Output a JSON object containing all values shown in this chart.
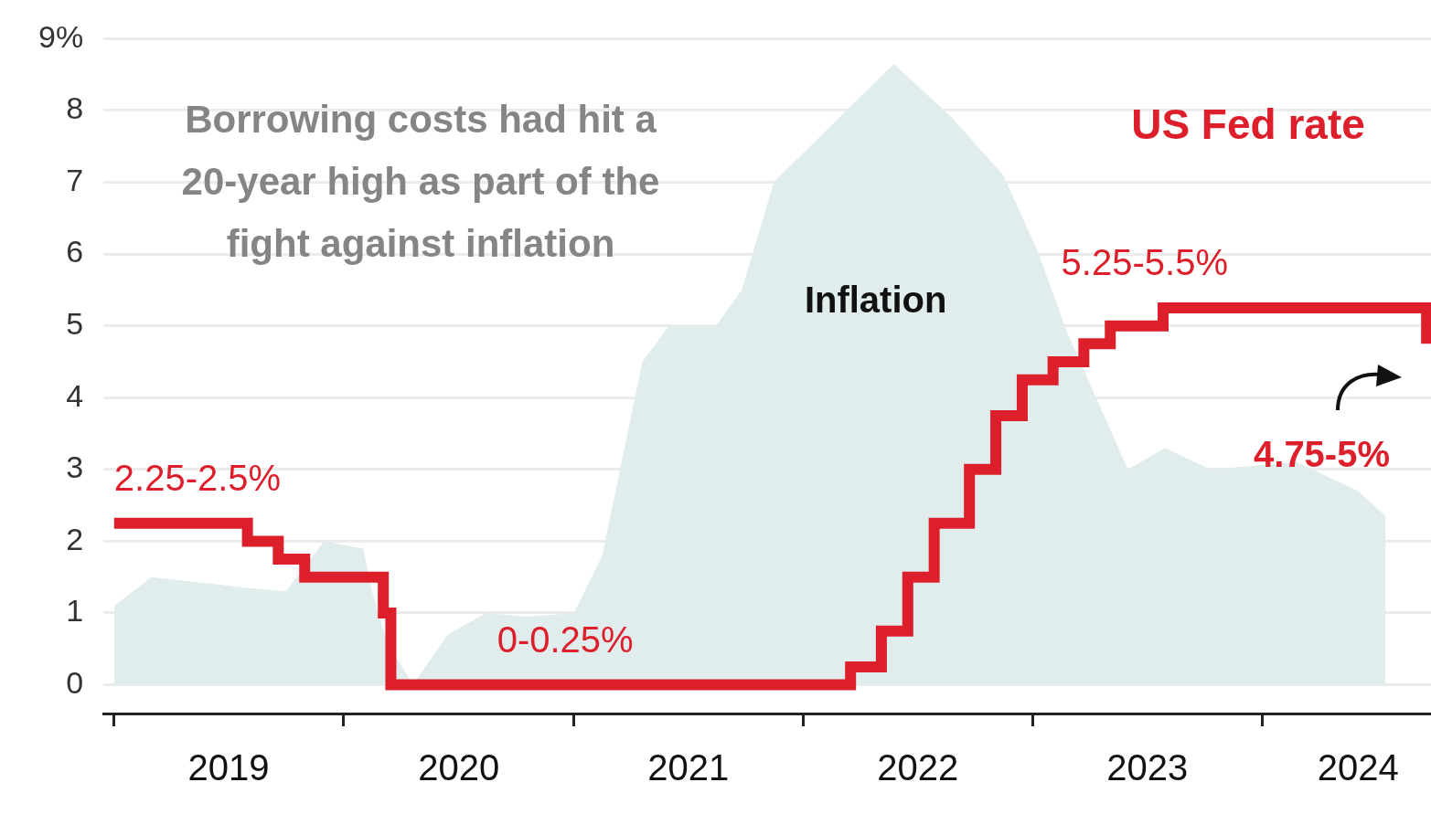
{
  "chart_data": {
    "type": "area",
    "title": "Borrowing costs had hit a 20-year high as part of the fight against inflation",
    "xlim": [
      "2018-12-15",
      "2024-09-25"
    ],
    "ylim": [
      -0.4,
      9
    ],
    "xticks": [
      {
        "value": "2019-01-01",
        "label": null
      },
      {
        "value": "2019-07-02",
        "label": "2019"
      },
      {
        "value": "2020-01-01",
        "label": null
      },
      {
        "value": "2020-07-02",
        "label": "2020"
      },
      {
        "value": "2021-01-01",
        "label": null
      },
      {
        "value": "2021-07-02",
        "label": "2021"
      },
      {
        "value": "2022-01-01",
        "label": null
      },
      {
        "value": "2022-07-02",
        "label": "2022"
      },
      {
        "value": "2023-01-01",
        "label": null
      },
      {
        "value": "2023-07-02",
        "label": "2023"
      },
      {
        "value": "2024-01-01",
        "label": null
      },
      {
        "value": "2024-06-01",
        "label": "2024"
      }
    ],
    "yticks": [
      0,
      1,
      2,
      3,
      4,
      5,
      6,
      7,
      8,
      {
        "value": 9,
        "label": "9%"
      }
    ],
    "grid": "y",
    "legend": false,
    "series": [
      {
        "name": "Inflation",
        "type": "area",
        "color": "#e1ecec",
        "x": [
          "2019-01",
          "2019-03",
          "2019-08",
          "2019-10",
          "2019-12",
          "2020-02",
          "2020-02-15",
          "2020-03-10",
          "2020-04-20",
          "2020-06-15",
          "2020-08-15",
          "2020-10-20",
          "2021-01",
          "2021-02-15",
          "2021-04-20",
          "2021-06",
          "2021-08-15",
          "2021-09-25",
          "2021-11-15",
          "2022-02-15",
          "2022-05-25",
          "2022-08-25",
          "2022-11-15",
          "2023-01-08",
          "2023-02-25",
          "2023-06",
          "2023-07-30",
          "2023-10-10",
          "2024-02-25",
          "2024-06",
          "2024-07-15"
        ],
        "values": [
          1.1,
          1.5,
          1.35,
          1.3,
          2.0,
          1.9,
          1.3,
          0.6,
          0,
          0.7,
          1.0,
          0.95,
          1.0,
          1.8,
          4.5,
          5.0,
          5.0,
          5.5,
          7.0,
          7.8,
          8.65,
          7.9,
          7.1,
          6.05,
          4.9,
          3.0,
          3.3,
          3.0,
          3.1,
          2.7,
          2.35
        ]
      },
      {
        "name": "US Fed rate",
        "type": "step",
        "color": "#dc1f2b",
        "x": [
          "2019-01-01",
          "2019-08-01",
          "2019-09-19",
          "2019-10-31",
          "2020-03-04",
          "2020-03-16",
          "2022-03-17",
          "2022-05-05",
          "2022-06-16",
          "2022-07-28",
          "2022-09-22",
          "2022-11-03",
          "2022-12-15",
          "2023-02-02",
          "2023-03-23",
          "2023-05-04",
          "2023-07-27",
          "2024-09-18"
        ],
        "values": [
          2.25,
          2.0,
          1.75,
          1.5,
          1.0,
          0,
          0.25,
          0.75,
          1.5,
          2.25,
          3.0,
          3.75,
          4.25,
          4.5,
          4.75,
          5.0,
          5.25,
          4.75
        ]
      }
    ],
    "annotations": [
      {
        "text": "2.25-2.5%",
        "x": "2019-01-01",
        "y": 2.25
      },
      {
        "text": "0-0.25%",
        "x": "2020-09-01",
        "y": 0
      },
      {
        "text": "5.25-5.5%",
        "x": "2023-02-15",
        "y": 5.25
      },
      {
        "text": "4.75-5%",
        "x": "2024-09-18",
        "y": 4.75
      }
    ]
  }
}
